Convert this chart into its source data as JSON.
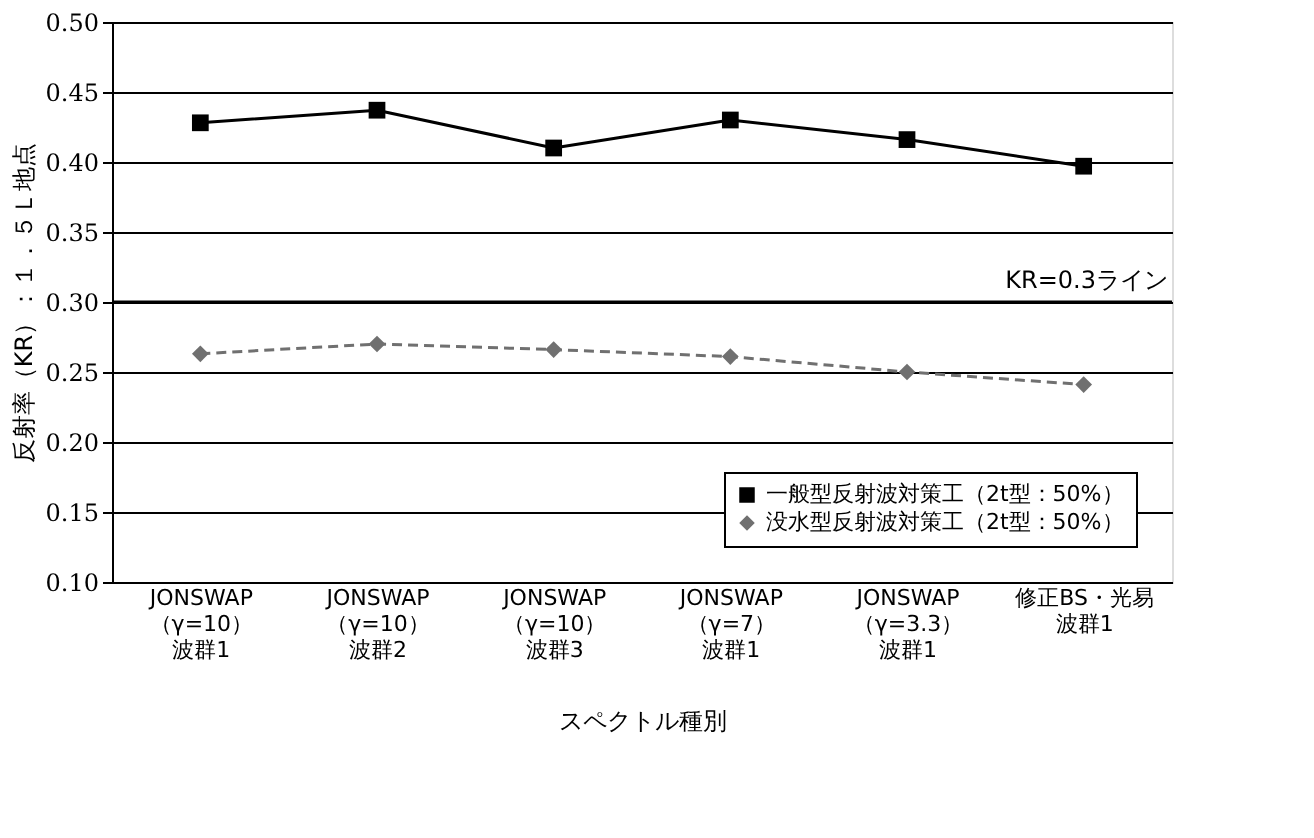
{
  "chart_data": {
    "type": "line",
    "xlabel": "スペクトル種別",
    "ylabel": "反射率（KR）：１．５Ｌ地点",
    "categories": [
      "JONSWAP（γ=10）波群1",
      "JONSWAP（γ=10）波群2",
      "JONSWAP（γ=10）波群3",
      "JONSWAP（γ=7）波群1",
      "JONSWAP（γ=3.3）波群1",
      "修正BS・光易波群1"
    ],
    "series": [
      {
        "name": "一般型反射波対策工（2t型：50%）",
        "color": "#000000",
        "marker": "square",
        "line_style": "solid",
        "values": [
          0.428,
          0.437,
          0.41,
          0.43,
          0.416,
          0.397
        ]
      },
      {
        "name": "没水型反射波対策工（2t型：50%）",
        "color": "#707070",
        "marker": "diamond",
        "line_style": "dashed",
        "values": [
          0.263,
          0.27,
          0.266,
          0.261,
          0.25,
          0.241
        ]
      }
    ],
    "ylim": [
      0.1,
      0.5
    ],
    "yticks": [
      {
        "value": 0.1,
        "label": "0.10"
      },
      0.15,
      {
        "value": 0.2,
        "label": "0.20"
      },
      0.25,
      {
        "value": 0.3,
        "label": "0.30"
      },
      0.35,
      {
        "value": 0.4,
        "label": "0.40"
      },
      0.45,
      {
        "value": 0.5,
        "label": "0.50"
      }
    ],
    "ref_lines": [
      {
        "axis": "y",
        "value": 0.3,
        "label": "KR=0.3ライン",
        "color": "#000000"
      }
    ],
    "grid": "y",
    "legend": "bottom right"
  }
}
